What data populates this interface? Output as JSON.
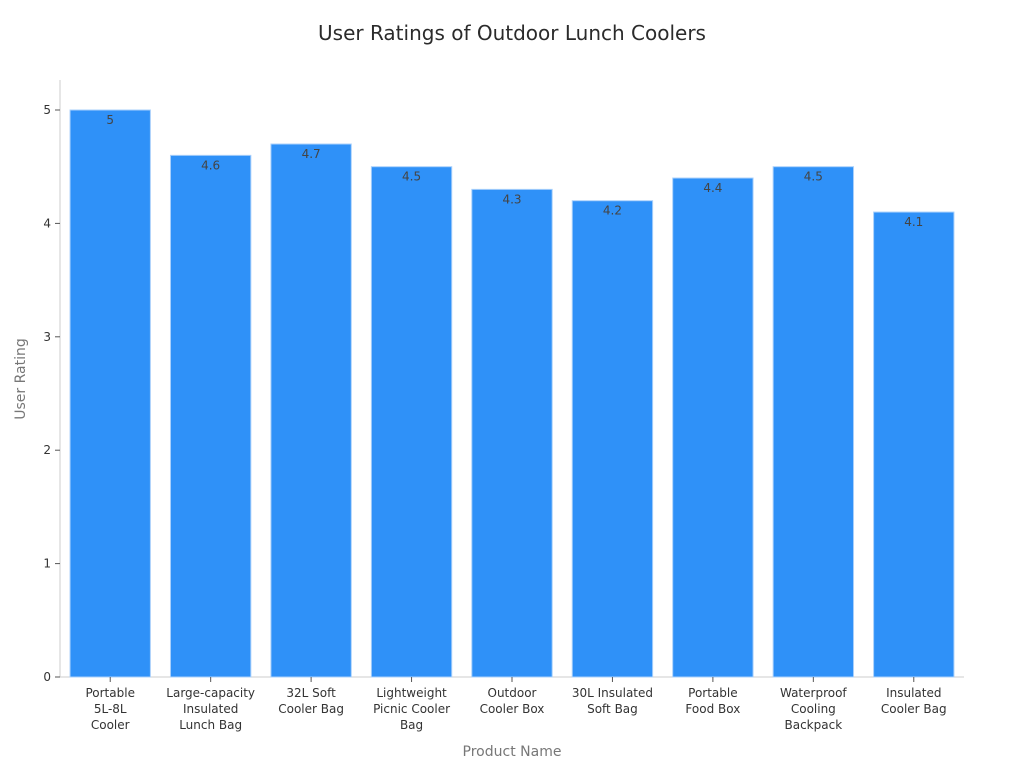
{
  "chart_data": {
    "type": "bar",
    "title": "User Ratings of Outdoor Lunch Coolers",
    "xlabel": "Product Name",
    "ylabel": "User Rating",
    "categories": [
      [
        "Portable",
        "5L-8L",
        "Cooler"
      ],
      [
        "Large-capacity",
        "Insulated",
        "Lunch Bag"
      ],
      [
        "32L Soft",
        "Cooler Bag"
      ],
      [
        "Lightweight",
        "Picnic Cooler",
        "Bag"
      ],
      [
        "Outdoor",
        "Cooler Box"
      ],
      [
        "30L Insulated",
        "Soft Bag"
      ],
      [
        "Portable",
        "Food Box"
      ],
      [
        "Waterproof",
        "Cooling",
        "Backpack"
      ],
      [
        "Insulated",
        "Cooler Bag"
      ]
    ],
    "values": [
      5,
      4.6,
      4.7,
      4.5,
      4.3,
      4.2,
      4.4,
      4.5,
      4.1
    ],
    "value_labels": [
      "5",
      "4.6",
      "4.7",
      "4.5",
      "4.3",
      "4.2",
      "4.4",
      "4.5",
      "4.1"
    ],
    "yticks": [
      "0",
      "1",
      "2",
      "3",
      "4",
      "5"
    ],
    "ylim": [
      0,
      5.3
    ],
    "grid": false,
    "legend": "none",
    "colors": {
      "bar": "#2f91f8",
      "bar_edge": "#a9d0fb"
    }
  }
}
